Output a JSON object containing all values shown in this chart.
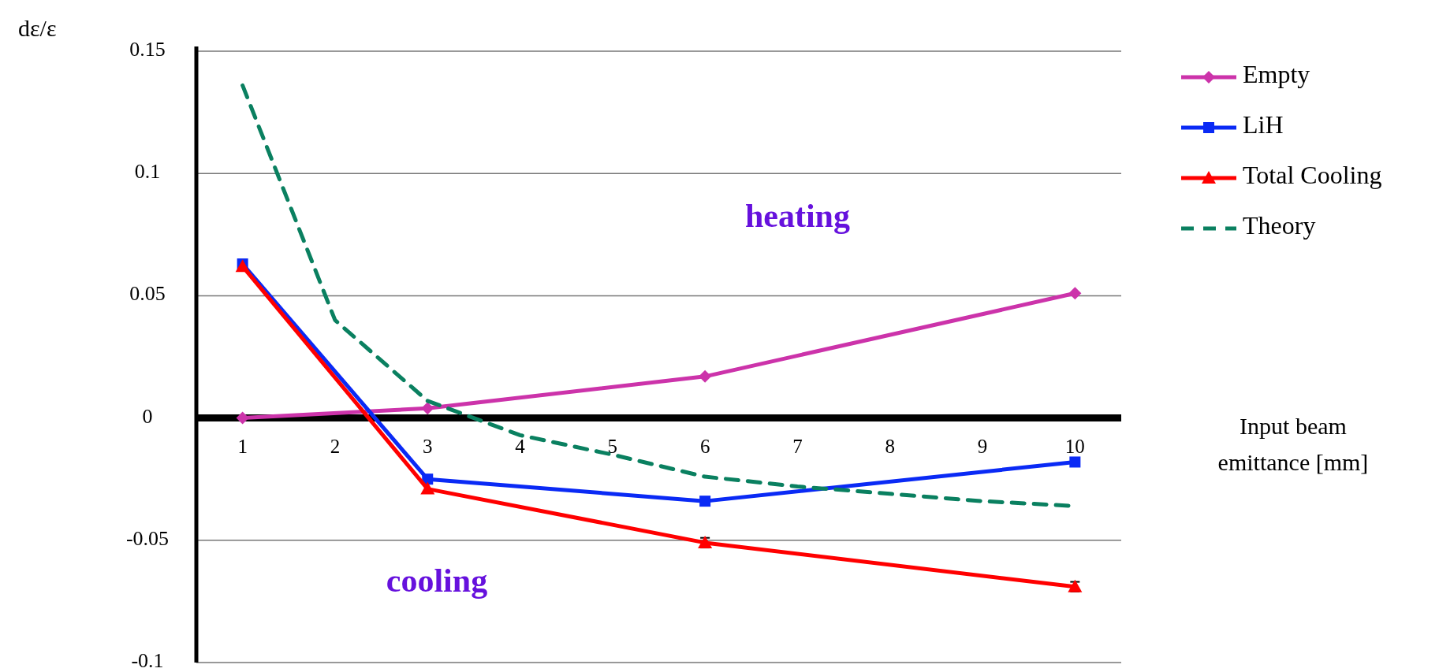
{
  "chart_data": {
    "type": "line",
    "ylabel": "dε/ε",
    "xlabel": "Input beam emittance [mm]",
    "xlim": [
      0.5,
      10.5
    ],
    "xticks": [
      1,
      2,
      3,
      4,
      5,
      6,
      7,
      8,
      9,
      10
    ],
    "ylim": [
      -0.1,
      0.15
    ],
    "yticks": [
      -0.1,
      -0.05,
      0,
      0.05,
      0.1,
      0.15
    ],
    "grid": "y",
    "legend": "right",
    "annotations": [
      "heating",
      "cooling"
    ],
    "series": [
      {
        "name": "Empty",
        "color": "#cc33aa",
        "marker": "diamond",
        "line_style": "solid",
        "x": [
          1,
          3,
          6,
          10
        ],
        "values": [
          0,
          0.004,
          0.017,
          0.051
        ]
      },
      {
        "name": "LiH",
        "color": "#0a2af5",
        "marker": "square",
        "line_style": "solid",
        "x": [
          1,
          3,
          6,
          10
        ],
        "values": [
          0.063,
          -0.025,
          -0.034,
          -0.018
        ]
      },
      {
        "name": "Total Cooling",
        "color": "#ff0000",
        "marker": "triangle",
        "line_style": "solid",
        "x": [
          1,
          3,
          6,
          10
        ],
        "values": [
          0.062,
          -0.029,
          -0.051,
          -0.069
        ],
        "errors": [
          null,
          null,
          0.002,
          0.002
        ]
      },
      {
        "name": "Theory",
        "color": "#0a8060",
        "marker": "none",
        "line_style": "dashed",
        "x": [
          1,
          2,
          3,
          4,
          5,
          6,
          7,
          8,
          9,
          10
        ],
        "values": [
          0.136,
          0.04,
          0.007,
          -0.007,
          -0.015,
          -0.024,
          -0.028,
          -0.031,
          -0.034,
          -0.036
        ]
      }
    ]
  }
}
